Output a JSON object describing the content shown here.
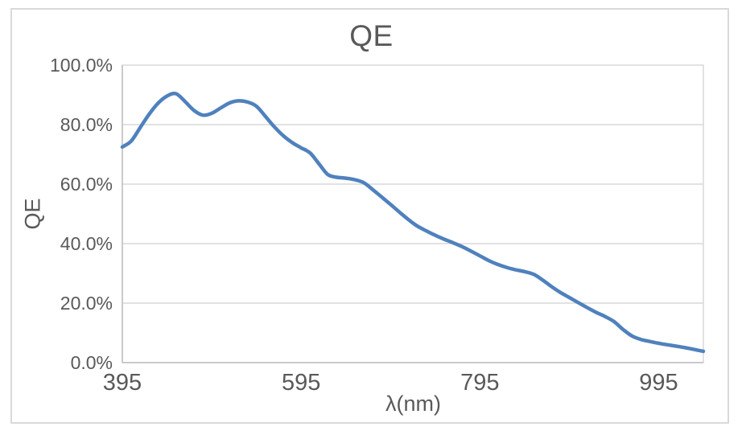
{
  "chart_data": {
    "type": "line",
    "title": "QE",
    "xlabel": "λ(nm)",
    "ylabel": "QE",
    "legend": "none",
    "grid": "horizontal",
    "xlim": [
      395,
      1045
    ],
    "ylim": [
      0,
      100
    ],
    "x_ticks": [
      395,
      595,
      795,
      995
    ],
    "y_ticks": [
      {
        "value": 0,
        "label": "0.0%"
      },
      {
        "value": 20,
        "label": "20.0%"
      },
      {
        "value": 40,
        "label": "40.0%"
      },
      {
        "value": 60,
        "label": "60.0%"
      },
      {
        "value": 80,
        "label": "80.0%"
      },
      {
        "value": 100,
        "label": "100.0%"
      }
    ],
    "series": [
      {
        "name": "QE",
        "x": [
          395,
          405,
          415,
          425,
          435,
          445,
          455,
          465,
          475,
          485,
          495,
          505,
          515,
          525,
          535,
          545,
          555,
          565,
          575,
          585,
          595,
          605,
          615,
          625,
          635,
          645,
          655,
          665,
          675,
          685,
          695,
          705,
          715,
          725,
          735,
          745,
          755,
          765,
          775,
          785,
          795,
          805,
          815,
          825,
          835,
          845,
          855,
          865,
          875,
          885,
          895,
          905,
          915,
          925,
          935,
          945,
          955,
          965,
          975,
          985,
          995,
          1005,
          1015,
          1025,
          1035,
          1045
        ],
        "values_percent": [
          72.5,
          74.5,
          79.0,
          83.5,
          87.2,
          89.6,
          90.4,
          87.8,
          84.8,
          83.2,
          83.8,
          85.6,
          87.3,
          88.0,
          87.6,
          86.2,
          82.8,
          79.3,
          76.3,
          74.0,
          72.2,
          70.5,
          66.8,
          63.2,
          62.3,
          62.0,
          61.5,
          60.5,
          58.2,
          55.7,
          53.2,
          50.6,
          48.1,
          45.9,
          44.3,
          42.8,
          41.5,
          40.3,
          39.0,
          37.5,
          35.9,
          34.3,
          33.0,
          32.0,
          31.2,
          30.6,
          29.7,
          27.8,
          25.6,
          23.6,
          21.9,
          20.2,
          18.5,
          16.9,
          15.5,
          13.8,
          11.2,
          9.0,
          7.8,
          7.1,
          6.5,
          6.0,
          5.5,
          5.0,
          4.4,
          3.8
        ]
      }
    ],
    "colors": {
      "line": "#4F81BD",
      "text": "#595959",
      "gridline": "#D9D9D9",
      "axis_line": "#BFBFBF",
      "chart_border": "#D9D9D9",
      "background": "#FFFFFF"
    }
  }
}
